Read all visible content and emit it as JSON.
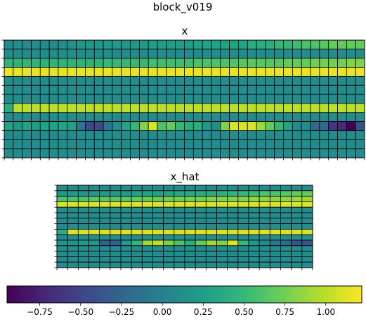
{
  "figure": {
    "title": "block_v019"
  },
  "chart_data": [
    {
      "type": "heatmap",
      "title": "x",
      "rows": 13,
      "cols": 40,
      "vmin": -0.95,
      "vmax": 1.22,
      "values": [
        [
          0.1,
          0.1,
          0.1,
          0.1,
          0.1,
          0.1,
          0.1,
          0.15,
          0.2,
          0.2,
          0.2,
          0.2,
          0.2,
          0.2,
          0.22,
          0.22,
          0.25,
          0.25,
          0.25,
          0.25,
          0.25,
          0.3,
          0.3,
          0.3,
          0.3,
          0.3,
          0.3,
          0.4,
          0.4,
          0.4,
          0.5,
          0.5,
          0.55,
          0.6,
          0.6,
          0.65,
          0.7,
          0.7,
          0.7,
          0.7
        ],
        [
          0.1,
          0.1,
          0.1,
          0.1,
          0.1,
          0.1,
          0.1,
          0.1,
          0.1,
          0.1,
          0.1,
          0.1,
          0.1,
          0.1,
          0.1,
          0.1,
          0.1,
          0.1,
          0.1,
          0.1,
          0.1,
          0.1,
          0.1,
          0.1,
          0.1,
          0.1,
          0.1,
          0.1,
          0.1,
          0.1,
          0.1,
          0.1,
          0.1,
          0.1,
          0.1,
          0.1,
          0.1,
          0.1,
          0.1,
          0.1
        ],
        [
          0.45,
          0.45,
          0.45,
          0.45,
          0.45,
          0.45,
          0.45,
          0.45,
          0.45,
          0.45,
          0.45,
          0.5,
          0.5,
          0.5,
          0.5,
          0.5,
          0.55,
          0.55,
          0.55,
          0.55,
          0.55,
          0.6,
          0.6,
          0.6,
          0.6,
          0.6,
          0.65,
          0.65,
          0.65,
          0.65,
          0.65,
          0.7,
          0.7,
          0.7,
          0.75,
          0.75,
          0.75,
          0.75,
          0.8,
          0.8
        ],
        [
          1.15,
          1.15,
          1.15,
          1.15,
          1.15,
          1.15,
          1.15,
          1.15,
          1.15,
          1.15,
          1.15,
          1.15,
          1.15,
          1.15,
          1.15,
          1.15,
          1.15,
          1.15,
          1.15,
          1.15,
          1.15,
          1.15,
          1.15,
          1.15,
          1.15,
          1.15,
          1.15,
          1.15,
          1.15,
          1.15,
          1.15,
          1.15,
          1.15,
          1.15,
          1.15,
          1.15,
          1.15,
          1.15,
          1.15,
          1.15
        ],
        [
          0.1,
          0.1,
          0.1,
          0.1,
          0.1,
          0.1,
          0.1,
          0.1,
          0.1,
          0.1,
          0.1,
          0.1,
          0.1,
          0.1,
          0.1,
          0.1,
          0.1,
          0.1,
          0.1,
          0.1,
          0.1,
          0.1,
          0.1,
          0.1,
          0.1,
          0.1,
          0.1,
          0.1,
          0.1,
          0.1,
          0.1,
          0.1,
          0.1,
          0.1,
          0.1,
          0.1,
          0.1,
          0.1,
          0.1,
          0.1
        ],
        [
          0.1,
          0.1,
          0.1,
          0.1,
          0.1,
          0.1,
          0.1,
          0.1,
          0.1,
          0.1,
          0.1,
          0.1,
          0.1,
          0.1,
          0.1,
          0.1,
          0.1,
          0.1,
          0.1,
          0.1,
          0.1,
          0.1,
          0.1,
          0.1,
          0.1,
          0.1,
          0.1,
          0.1,
          0.1,
          0.1,
          0.1,
          0.1,
          0.1,
          0.1,
          0.1,
          0.1,
          0.1,
          0.1,
          0.1,
          0.1
        ],
        [
          0.1,
          0.1,
          0.1,
          0.1,
          0.1,
          0.1,
          0.1,
          0.1,
          0.1,
          0.1,
          0.1,
          0.1,
          0.1,
          0.1,
          0.1,
          0.1,
          0.1,
          0.1,
          0.1,
          0.1,
          0.1,
          0.1,
          0.1,
          0.1,
          0.1,
          0.1,
          0.1,
          0.1,
          0.1,
          0.1,
          0.1,
          0.1,
          0.1,
          0.1,
          0.1,
          0.1,
          0.1,
          0.1,
          0.1,
          0.1
        ],
        [
          0.4,
          1.0,
          1.0,
          1.0,
          1.0,
          1.0,
          1.0,
          1.0,
          1.0,
          1.0,
          1.0,
          1.0,
          1.0,
          1.0,
          1.0,
          1.0,
          1.0,
          1.0,
          1.0,
          1.0,
          1.0,
          1.0,
          1.0,
          1.0,
          1.0,
          1.0,
          1.0,
          1.0,
          1.0,
          1.0,
          1.0,
          1.0,
          1.0,
          1.0,
          1.0,
          1.0,
          1.0,
          1.0,
          1.0,
          1.0
        ],
        [
          0.1,
          0.1,
          0.1,
          0.1,
          0.1,
          0.1,
          0.1,
          0.1,
          0.1,
          0.1,
          0.1,
          0.1,
          0.1,
          0.1,
          0.1,
          0.1,
          0.1,
          0.1,
          0.1,
          0.1,
          0.1,
          0.1,
          0.1,
          0.1,
          0.1,
          0.1,
          0.1,
          0.1,
          0.1,
          0.1,
          0.1,
          0.1,
          0.1,
          0.1,
          0.1,
          0.1,
          0.1,
          0.1,
          0.1,
          0.1
        ],
        [
          0.3,
          0.2,
          0.3,
          0.25,
          0.3,
          0.3,
          0.3,
          0.3,
          -0.1,
          -0.45,
          -0.45,
          -0.1,
          0.1,
          0.3,
          0.5,
          0.8,
          1.1,
          0.6,
          0.7,
          0.5,
          0.4,
          0.4,
          0.2,
          0.1,
          0.8,
          1.1,
          1.1,
          1.1,
          0.9,
          0.7,
          0.5,
          0.3,
          0.1,
          0.1,
          -0.2,
          -0.2,
          -0.6,
          -0.7,
          -0.95,
          -0.4
        ],
        [
          0.1,
          0.1,
          0.1,
          0.1,
          0.1,
          0.1,
          0.1,
          0.1,
          0.1,
          0.1,
          0.1,
          0.1,
          0.1,
          0.1,
          0.1,
          0.1,
          0.1,
          0.1,
          0.1,
          0.1,
          0.1,
          0.1,
          0.1,
          0.1,
          0.1,
          0.1,
          0.1,
          0.1,
          0.1,
          0.1,
          0.1,
          0.1,
          0.1,
          0.1,
          0.1,
          0.1,
          0.1,
          0.1,
          0.1,
          0.1
        ],
        [
          0.1,
          0.1,
          0.1,
          0.1,
          0.1,
          0.1,
          0.1,
          0.1,
          0.1,
          0.1,
          0.1,
          0.1,
          0.1,
          0.1,
          0.1,
          0.1,
          0.1,
          0.1,
          0.1,
          0.1,
          0.1,
          0.1,
          0.1,
          0.1,
          0.1,
          0.1,
          0.1,
          0.1,
          0.1,
          0.1,
          0.1,
          0.1,
          0.1,
          0.1,
          0.1,
          0.1,
          0.1,
          0.1,
          0.1,
          0.1
        ],
        [
          0.1,
          0.1,
          0.1,
          0.1,
          0.1,
          0.1,
          0.1,
          0.1,
          0.1,
          0.1,
          0.1,
          0.1,
          0.1,
          0.1,
          0.1,
          0.1,
          0.1,
          0.1,
          0.1,
          0.1,
          0.1,
          0.1,
          0.1,
          0.1,
          0.1,
          0.1,
          0.1,
          0.1,
          0.1,
          0.1,
          0.1,
          0.1,
          0.1,
          0.1,
          0.1,
          0.1,
          0.1,
          0.1,
          0.1,
          0.1
        ]
      ],
      "grid": true,
      "colormap": "viridis"
    },
    {
      "type": "heatmap",
      "title": "x_hat",
      "rows": 15,
      "cols": 24,
      "vmin": -0.95,
      "vmax": 1.22,
      "values": [
        [
          0.1,
          0.1,
          0.1,
          0.1,
          0.1,
          0.1,
          0.1,
          0.1,
          0.1,
          0.1,
          0.1,
          0.1,
          0.1,
          0.1,
          0.1,
          0.1,
          0.1,
          0.1,
          0.1,
          0.1,
          0.1,
          0.1,
          0.1,
          0.1
        ],
        [
          0.2,
          0.2,
          0.2,
          0.2,
          0.2,
          0.25,
          0.25,
          0.3,
          0.3,
          0.3,
          0.3,
          0.35,
          0.35,
          0.4,
          0.4,
          0.45,
          0.45,
          0.5,
          0.55,
          0.6,
          0.6,
          0.65,
          0.7,
          0.7
        ],
        [
          0.6,
          0.6,
          0.6,
          0.65,
          0.65,
          0.65,
          0.65,
          0.7,
          0.7,
          0.7,
          0.75,
          0.75,
          0.75,
          0.75,
          0.8,
          0.8,
          0.8,
          0.8,
          0.85,
          0.85,
          0.85,
          0.85,
          0.9,
          0.9
        ],
        [
          1.1,
          1.1,
          1.1,
          1.1,
          1.1,
          1.1,
          1.1,
          1.1,
          1.1,
          1.1,
          1.1,
          1.1,
          1.1,
          1.1,
          1.1,
          1.1,
          1.1,
          1.1,
          1.1,
          1.1,
          1.1,
          1.1,
          1.1,
          1.1
        ],
        [
          0.1,
          0.1,
          0.1,
          0.1,
          0.1,
          0.1,
          0.1,
          0.1,
          0.1,
          0.1,
          0.1,
          0.1,
          0.1,
          0.1,
          0.1,
          0.1,
          0.1,
          0.1,
          0.1,
          0.1,
          0.1,
          0.1,
          0.1,
          0.1
        ],
        [
          0.1,
          0.1,
          0.1,
          0.1,
          0.1,
          0.1,
          0.1,
          0.1,
          0.1,
          0.1,
          0.1,
          0.1,
          0.1,
          0.1,
          0.1,
          0.1,
          0.1,
          0.1,
          0.1,
          0.1,
          0.1,
          0.1,
          0.1,
          0.1
        ],
        [
          0.1,
          0.1,
          0.1,
          0.1,
          0.1,
          0.1,
          0.1,
          0.1,
          0.1,
          0.1,
          0.1,
          0.1,
          0.1,
          0.1,
          0.1,
          0.1,
          0.1,
          0.1,
          0.1,
          0.1,
          0.1,
          0.1,
          0.1,
          0.1
        ],
        [
          0.1,
          0.1,
          0.1,
          0.1,
          0.1,
          0.1,
          0.1,
          0.1,
          0.1,
          0.1,
          0.1,
          0.1,
          0.1,
          0.1,
          0.1,
          0.1,
          0.1,
          0.1,
          0.1,
          0.1,
          0.1,
          0.1,
          0.1,
          0.1
        ],
        [
          0.4,
          1.1,
          1.1,
          1.1,
          1.1,
          1.1,
          1.1,
          1.1,
          1.1,
          1.1,
          1.1,
          1.1,
          1.1,
          1.1,
          1.1,
          1.1,
          1.1,
          1.1,
          1.1,
          1.1,
          1.1,
          1.1,
          1.1,
          1.1
        ],
        [
          0.1,
          0.1,
          0.1,
          0.1,
          0.1,
          0.1,
          0.1,
          0.1,
          0.1,
          0.1,
          0.1,
          0.1,
          0.1,
          0.1,
          0.1,
          0.1,
          0.1,
          0.1,
          0.1,
          0.1,
          0.1,
          0.1,
          0.1,
          0.1
        ],
        [
          0.2,
          0.2,
          0.2,
          0.2,
          -0.3,
          -0.3,
          0.2,
          0.5,
          0.9,
          1.0,
          0.8,
          0.6,
          0.4,
          0.7,
          0.9,
          0.8,
          1.1,
          0.5,
          0.2,
          0.1,
          -0.1,
          -0.2,
          -0.4,
          -0.4
        ],
        [
          0.1,
          0.1,
          0.1,
          0.1,
          0.1,
          0.1,
          0.1,
          0.1,
          0.1,
          0.1,
          0.1,
          0.1,
          0.1,
          0.1,
          0.1,
          0.1,
          0.1,
          0.1,
          0.1,
          0.1,
          0.1,
          0.1,
          0.1,
          0.1
        ],
        [
          0.1,
          0.1,
          0.1,
          0.1,
          0.1,
          0.1,
          0.1,
          0.1,
          0.1,
          0.1,
          0.1,
          0.1,
          0.1,
          0.1,
          0.1,
          0.1,
          0.1,
          0.1,
          0.1,
          0.1,
          0.1,
          0.1,
          0.1,
          0.1
        ],
        [
          0.1,
          0.1,
          0.1,
          0.1,
          0.1,
          0.1,
          0.1,
          0.1,
          0.1,
          0.1,
          0.1,
          0.1,
          0.1,
          0.1,
          0.1,
          0.1,
          0.1,
          0.1,
          0.1,
          0.1,
          0.1,
          0.1,
          0.1,
          0.1
        ],
        [
          0.1,
          0.1,
          0.1,
          0.1,
          0.1,
          0.1,
          0.1,
          0.1,
          0.1,
          0.1,
          0.1,
          0.1,
          0.1,
          0.1,
          0.1,
          0.1,
          0.1,
          0.1,
          0.1,
          0.1,
          0.1,
          0.1,
          0.1,
          0.1
        ]
      ],
      "grid": true,
      "colormap": "viridis"
    },
    {
      "type": "colorbar",
      "orientation": "horizontal",
      "vmin": -0.95,
      "vmax": 1.22,
      "ticks": [
        -0.75,
        -0.5,
        -0.25,
        0.0,
        0.25,
        0.5,
        0.75,
        1.0
      ],
      "tick_labels": [
        "−0.75",
        "−0.50",
        "−0.25",
        "0.00",
        "0.25",
        "0.50",
        "0.75",
        "1.00"
      ],
      "colormap": "viridis"
    }
  ]
}
